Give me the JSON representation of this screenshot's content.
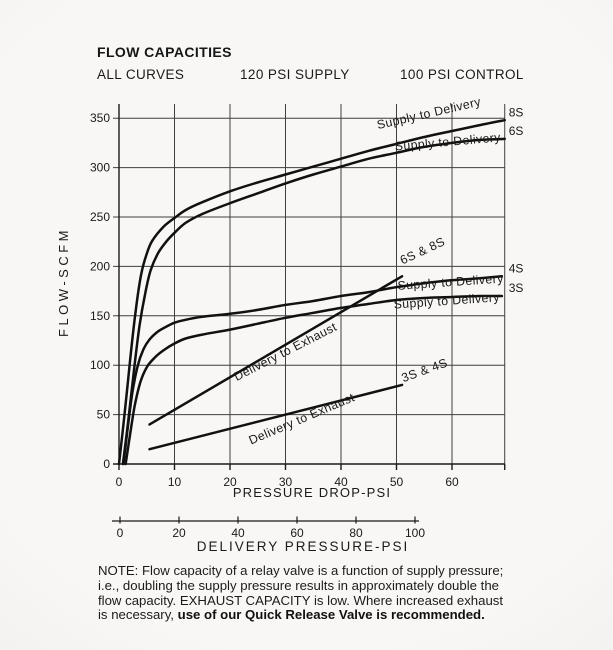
{
  "header": {
    "title": "FLOW CAPACITIES",
    "conditions": [
      "ALL CURVES",
      "120 PSI SUPPLY",
      "100 PSI CONTROL"
    ]
  },
  "colors": {
    "ink": "#1a1a1a",
    "grid": "#3f3f3f",
    "curve": "#111111",
    "paper": "#f6f5f3"
  },
  "chart_data": {
    "type": "line",
    "title": "FLOW CAPACITIES",
    "conditions": [
      "ALL CURVES",
      "120 PSI SUPPLY",
      "100 PSI CONTROL"
    ],
    "xlabel": "PRESSURE DROP-PSI",
    "ylabel": "FLOW-SCFM",
    "x2label": "DELIVERY PRESSURE-PSI",
    "xlim": [
      0,
      69.5
    ],
    "ylim": [
      0,
      364
    ],
    "xticks": [
      0,
      10,
      20,
      30,
      40,
      50,
      60
    ],
    "yticks": [
      0,
      50,
      100,
      150,
      200,
      250,
      300,
      350
    ],
    "x2ticks": [
      0,
      20,
      40,
      60,
      80,
      100
    ],
    "grid": true,
    "series": [
      {
        "id": "8s-supply-to-delivery",
        "name": "Supply to Delivery (8S)",
        "end_label": "8S",
        "points": [
          [
            0,
            0
          ],
          [
            1,
            50
          ],
          [
            2,
            105
          ],
          [
            3,
            155
          ],
          [
            4,
            192
          ],
          [
            5,
            213
          ],
          [
            6,
            226
          ],
          [
            8,
            240
          ],
          [
            10,
            249
          ],
          [
            12,
            257
          ],
          [
            15,
            265
          ],
          [
            20,
            276
          ],
          [
            25,
            285
          ],
          [
            30,
            293
          ],
          [
            35,
            301
          ],
          [
            40,
            309
          ],
          [
            45,
            317
          ],
          [
            50,
            324
          ],
          [
            55,
            331
          ],
          [
            60,
            337
          ],
          [
            65,
            343
          ],
          [
            69.5,
            348
          ]
        ]
      },
      {
        "id": "6s-supply-to-delivery",
        "name": "Supply to Delivery (6S)",
        "end_label": "6S",
        "points": [
          [
            0.7,
            0
          ],
          [
            1.7,
            45
          ],
          [
            2.7,
            95
          ],
          [
            3.7,
            140
          ],
          [
            4.7,
            172
          ],
          [
            5.7,
            196
          ],
          [
            7,
            213
          ],
          [
            8.5,
            225
          ],
          [
            10,
            234
          ],
          [
            12,
            244
          ],
          [
            15,
            253
          ],
          [
            20,
            264
          ],
          [
            25,
            274
          ],
          [
            30,
            284
          ],
          [
            35,
            293
          ],
          [
            40,
            301
          ],
          [
            45,
            309
          ],
          [
            50,
            315
          ],
          [
            55,
            321
          ],
          [
            60,
            325
          ],
          [
            65,
            328
          ],
          [
            69.5,
            329
          ]
        ]
      },
      {
        "id": "4s-supply-to-delivery",
        "name": "Supply to Delivery (4S)",
        "end_label": "4S",
        "points": [
          [
            0.8,
            0
          ],
          [
            1.6,
            38
          ],
          [
            2.4,
            72
          ],
          [
            3.4,
            100
          ],
          [
            4.4,
            116
          ],
          [
            5.5,
            126
          ],
          [
            7,
            134
          ],
          [
            8.5,
            139
          ],
          [
            10,
            143
          ],
          [
            12,
            146
          ],
          [
            15,
            149
          ],
          [
            20,
            152
          ],
          [
            25,
            156
          ],
          [
            30,
            161
          ],
          [
            35,
            165
          ],
          [
            40,
            170
          ],
          [
            45,
            174
          ],
          [
            50,
            179
          ],
          [
            55,
            183
          ],
          [
            60,
            186
          ],
          [
            65,
            188
          ],
          [
            69,
            190
          ]
        ]
      },
      {
        "id": "3s-supply-to-delivery",
        "name": "Supply to Delivery (3S)",
        "end_label": "3S",
        "points": [
          [
            1.2,
            0
          ],
          [
            2,
            30
          ],
          [
            2.8,
            58
          ],
          [
            3.8,
            82
          ],
          [
            5,
            98
          ],
          [
            6.5,
            108
          ],
          [
            8,
            115
          ],
          [
            10,
            122
          ],
          [
            12,
            127
          ],
          [
            15,
            131
          ],
          [
            20,
            136
          ],
          [
            25,
            142
          ],
          [
            30,
            148
          ],
          [
            35,
            153
          ],
          [
            40,
            158
          ],
          [
            45,
            162
          ],
          [
            50,
            166
          ],
          [
            55,
            168
          ],
          [
            60,
            169
          ],
          [
            65,
            170
          ],
          [
            69,
            170
          ]
        ]
      },
      {
        "id": "6s-8s-delivery-to-exhaust",
        "name": "Delivery to Exhaust (6S & 8S)",
        "points": [
          [
            5.5,
            40
          ],
          [
            51,
            190
          ]
        ]
      },
      {
        "id": "3s-4s-delivery-to-exhaust",
        "name": "Delivery to Exhaust (3S & 4S)",
        "points": [
          [
            5.5,
            15
          ],
          [
            51,
            80
          ]
        ]
      }
    ],
    "annotations": [
      {
        "text": "Supply to Delivery",
        "x": 56,
        "y": 351,
        "angle": -13
      },
      {
        "text": "Supply to Delivery",
        "x": 59.3,
        "y": 322,
        "angle": -5
      },
      {
        "text": "6S & 8S",
        "x": 55,
        "y": 212,
        "angle": -25
      },
      {
        "text": "Supply to Delivery",
        "x": 59.8,
        "y": 180,
        "angle": -4
      },
      {
        "text": "Supply to Delivery",
        "x": 59.1,
        "y": 161,
        "angle": -4
      },
      {
        "text": "Delivery to Exhaust",
        "x": 30.3,
        "y": 110,
        "angle": -27
      },
      {
        "text": "3S & 4S",
        "x": 55.3,
        "y": 91,
        "angle": -20
      },
      {
        "text": "Delivery to Exhaust",
        "x": 33.2,
        "y": 42,
        "angle": -23
      }
    ]
  },
  "note": {
    "lines": [
      "NOTE: Flow capacity of a relay valve is a function of supply pressure;",
      "i.e., doubling the supply pressure results in approximately double the",
      "flow capacity. EXHAUST CAPACITY is low. Where increased exhaust"
    ],
    "last_line_regular": "is necessary, ",
    "last_line_bold": "use of our Quick Release Valve is recommended."
  }
}
